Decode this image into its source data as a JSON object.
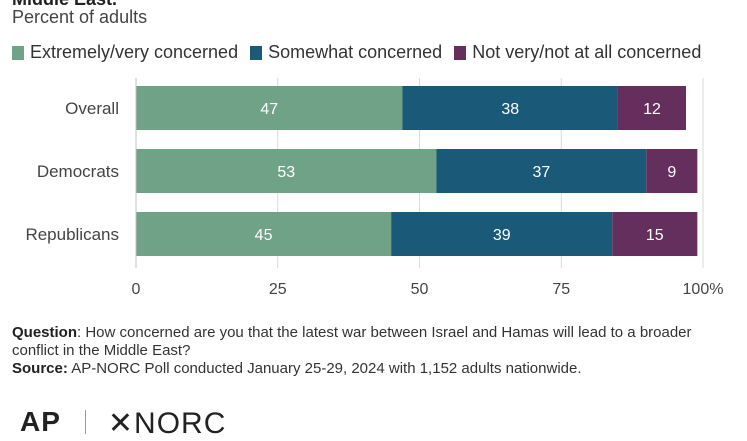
{
  "header": {
    "title_fragment": "Middle East.",
    "subtitle": "Percent of adults"
  },
  "legend": [
    {
      "label": "Extremely/very concerned",
      "color": "#6fa287"
    },
    {
      "label": "Somewhat concerned",
      "color": "#1a5a78"
    },
    {
      "label": "Not very/not at all concerned",
      "color": "#642f5c"
    }
  ],
  "chart_data": {
    "type": "bar",
    "orientation": "horizontal",
    "stacked": true,
    "categories": [
      "Overall",
      "Democrats",
      "Republicans"
    ],
    "series": [
      {
        "name": "Extremely/very concerned",
        "values": [
          47,
          53,
          45
        ],
        "color": "#6fa287"
      },
      {
        "name": "Somewhat concerned",
        "values": [
          38,
          37,
          39
        ],
        "color": "#1a5a78"
      },
      {
        "name": "Not very/not at all concerned",
        "values": [
          12,
          9,
          15
        ],
        "color": "#642f5c"
      }
    ],
    "xlim": [
      0,
      100
    ],
    "x_ticks": [
      0,
      25,
      50,
      75,
      100
    ],
    "x_tick_labels": [
      "0",
      "25",
      "50",
      "75",
      "100%"
    ],
    "grid": true
  },
  "notes": {
    "question_label": "Question",
    "question_text": ": How concerned are you that the latest war between Israel and Hamas will lead to a broader conflict in the Middle East?",
    "source_label": "Source:",
    "source_text": " AP-NORC Poll conducted January 25-29, 2024 with 1,152 adults nationwide."
  },
  "logos": {
    "ap": "AP",
    "norc": "✕NORC"
  }
}
